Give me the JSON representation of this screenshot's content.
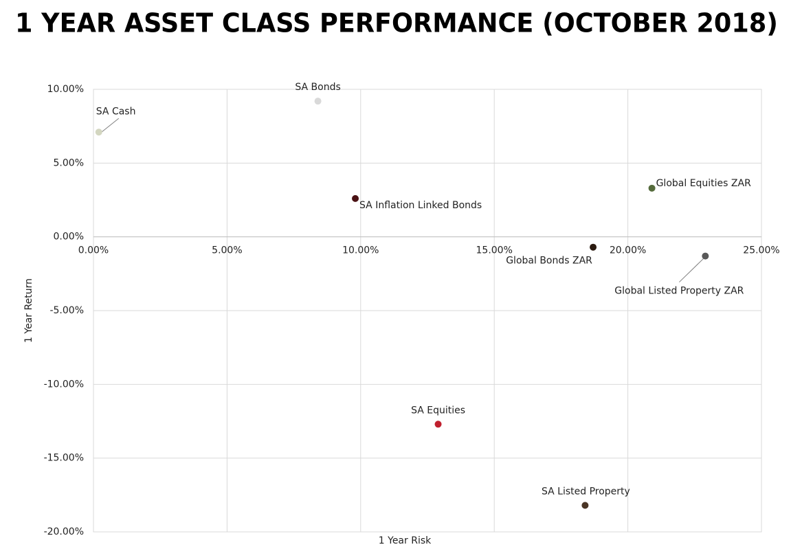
{
  "chart_data": {
    "type": "scatter",
    "title": "1 YEAR ASSET CLASS PERFORMANCE (OCTOBER 2018)",
    "x_label": "1 Year Risk",
    "y_label": "1 Year Return",
    "xlim": [
      0,
      25
    ],
    "ylim": [
      -20,
      10
    ],
    "grid": true,
    "xticks": [
      {
        "value": 0,
        "label": "0.00%"
      },
      {
        "value": 5,
        "label": "5.00%"
      },
      {
        "value": 10,
        "label": "10.00%"
      },
      {
        "value": 15,
        "label": "15.00%"
      },
      {
        "value": 20,
        "label": "20.00%"
      },
      {
        "value": 25,
        "label": "25.00%"
      }
    ],
    "yticks": [
      {
        "value": -20,
        "label": "-20.00%"
      },
      {
        "value": -15,
        "label": "-15.00%"
      },
      {
        "value": -10,
        "label": "-10.00%"
      },
      {
        "value": -5,
        "label": "-5.00%"
      },
      {
        "value": 0,
        "label": "0.00%"
      },
      {
        "value": 5,
        "label": "5.00%"
      },
      {
        "value": 10,
        "label": "10.00%"
      }
    ],
    "series": [
      {
        "name": "SA Cash",
        "color": "#d3d6c0",
        "x": [
          0.2
        ],
        "values": [
          7.1
        ]
      },
      {
        "name": "SA Bonds",
        "color": "#d9d9d9",
        "x": [
          8.4
        ],
        "values": [
          9.2
        ]
      },
      {
        "name": "SA Inflation Linked Bonds",
        "color": "#4a1214",
        "x": [
          9.8
        ],
        "values": [
          2.6
        ]
      },
      {
        "name": "Global Equities ZAR",
        "color": "#556b3c",
        "x": [
          20.9
        ],
        "values": [
          3.3
        ]
      },
      {
        "name": "Global Bonds ZAR",
        "color": "#2b1a10",
        "x": [
          18.7
        ],
        "values": [
          -0.7
        ]
      },
      {
        "name": "Global Listed Property ZAR",
        "color": "#595959",
        "x": [
          22.9
        ],
        "values": [
          -1.3
        ]
      },
      {
        "name": "SA Equities",
        "color": "#c0202e",
        "x": [
          12.9
        ],
        "values": [
          -12.7
        ]
      },
      {
        "name": "SA Listed Property",
        "color": "#4a3526",
        "x": [
          18.4
        ],
        "values": [
          -18.2
        ]
      }
    ]
  }
}
